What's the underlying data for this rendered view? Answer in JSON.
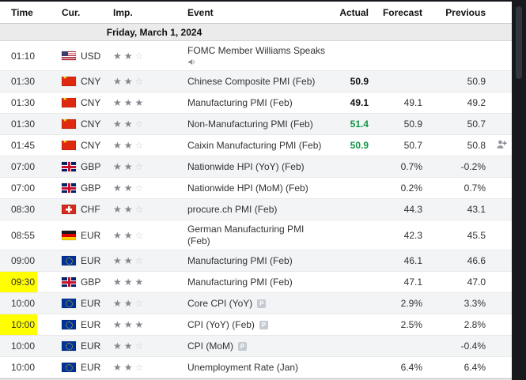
{
  "window": {
    "surround_color": "#15171b"
  },
  "table": {
    "columns": [
      {
        "label": "Time"
      },
      {
        "label": "Cur."
      },
      {
        "label": "Imp."
      },
      {
        "label": "Event"
      },
      {
        "label": "Actual"
      },
      {
        "label": "Forecast"
      },
      {
        "label": "Previous"
      }
    ],
    "date_header": "Friday, March 1, 2024",
    "rows": [
      {
        "time": "01:10",
        "currency": "USD",
        "flag": "us",
        "importance": 2,
        "event": "FOMC Member Williams Speaks",
        "actual": "",
        "actual_class": "",
        "forecast": "",
        "previous": "",
        "speech": true,
        "tall": true
      },
      {
        "time": "01:30",
        "currency": "CNY",
        "flag": "cn",
        "importance": 2,
        "event": "Chinese Composite PMI (Feb)",
        "actual": "50.9",
        "actual_class": "bold",
        "forecast": "",
        "previous": "50.9"
      },
      {
        "time": "01:30",
        "currency": "CNY",
        "flag": "cn",
        "importance": 3,
        "event": "Manufacturing PMI (Feb)",
        "actual": "49.1",
        "actual_class": "bold",
        "forecast": "49.1",
        "previous": "49.2"
      },
      {
        "time": "01:30",
        "currency": "CNY",
        "flag": "cn",
        "importance": 2,
        "event": "Non-Manufacturing PMI (Feb)",
        "actual": "51.4",
        "actual_class": "green",
        "forecast": "50.9",
        "previous": "50.7"
      },
      {
        "time": "01:45",
        "currency": "CNY",
        "flag": "cn",
        "importance": 2,
        "event": "Caixin Manufacturing PMI (Feb)",
        "actual": "50.9",
        "actual_class": "green",
        "forecast": "50.7",
        "previous": "50.8",
        "attendee": true
      },
      {
        "time": "07:00",
        "currency": "GBP",
        "flag": "gb",
        "importance": 2,
        "event": "Nationwide HPI (YoY) (Feb)",
        "actual": "",
        "actual_class": "",
        "forecast": "0.7%",
        "previous": "-0.2%"
      },
      {
        "time": "07:00",
        "currency": "GBP",
        "flag": "gb",
        "importance": 2,
        "event": "Nationwide HPI (MoM) (Feb)",
        "actual": "",
        "actual_class": "",
        "forecast": "0.2%",
        "previous": "0.7%"
      },
      {
        "time": "08:30",
        "currency": "CHF",
        "flag": "ch",
        "importance": 2,
        "event": "procure.ch PMI (Feb)",
        "actual": "",
        "actual_class": "",
        "forecast": "44.3",
        "previous": "43.1"
      },
      {
        "time": "08:55",
        "currency": "EUR",
        "flag": "de",
        "importance": 2,
        "event": "German Manufacturing PMI (Feb)",
        "actual": "",
        "actual_class": "",
        "forecast": "42.3",
        "previous": "45.5",
        "wrap": true,
        "tall": true
      },
      {
        "time": "09:00",
        "currency": "EUR",
        "flag": "eu",
        "importance": 2,
        "event": "Manufacturing PMI (Feb)",
        "actual": "",
        "actual_class": "",
        "forecast": "46.1",
        "previous": "46.6"
      },
      {
        "time": "09:30",
        "currency": "GBP",
        "flag": "gb",
        "importance": 3,
        "event": "Manufacturing PMI (Feb)",
        "actual": "",
        "actual_class": "",
        "forecast": "47.1",
        "previous": "47.0",
        "highlight_time": true
      },
      {
        "time": "10:00",
        "currency": "EUR",
        "flag": "eu",
        "importance": 2,
        "event": "Core CPI (YoY)",
        "actual": "",
        "actual_class": "",
        "forecast": "2.9%",
        "previous": "3.3%",
        "preliminary": true
      },
      {
        "time": "10:00",
        "currency": "EUR",
        "flag": "eu",
        "importance": 3,
        "event": "CPI (YoY) (Feb)",
        "actual": "",
        "actual_class": "",
        "forecast": "2.5%",
        "previous": "2.8%",
        "preliminary": true,
        "highlight_time": true
      },
      {
        "time": "10:00",
        "currency": "EUR",
        "flag": "eu",
        "importance": 2,
        "event": "CPI (MoM)",
        "actual": "",
        "actual_class": "",
        "forecast": "",
        "previous": "-0.4%",
        "preliminary": true
      },
      {
        "time": "10:00",
        "currency": "EUR",
        "flag": "eu",
        "importance": 2,
        "event": "Unemployment Rate (Jan)",
        "actual": "",
        "actual_class": "",
        "forecast": "6.4%",
        "previous": "6.4%"
      }
    ]
  },
  "icons": {
    "star_filled": "★",
    "star_empty": "☆",
    "preliminary_label": "P",
    "speech_icon": "speaker-icon",
    "attendee_icon": "person-plus-icon"
  },
  "colors": {
    "actual_green": "#149447",
    "time_highlight": "#ffff00",
    "alt_row": "#f2f4f6"
  }
}
